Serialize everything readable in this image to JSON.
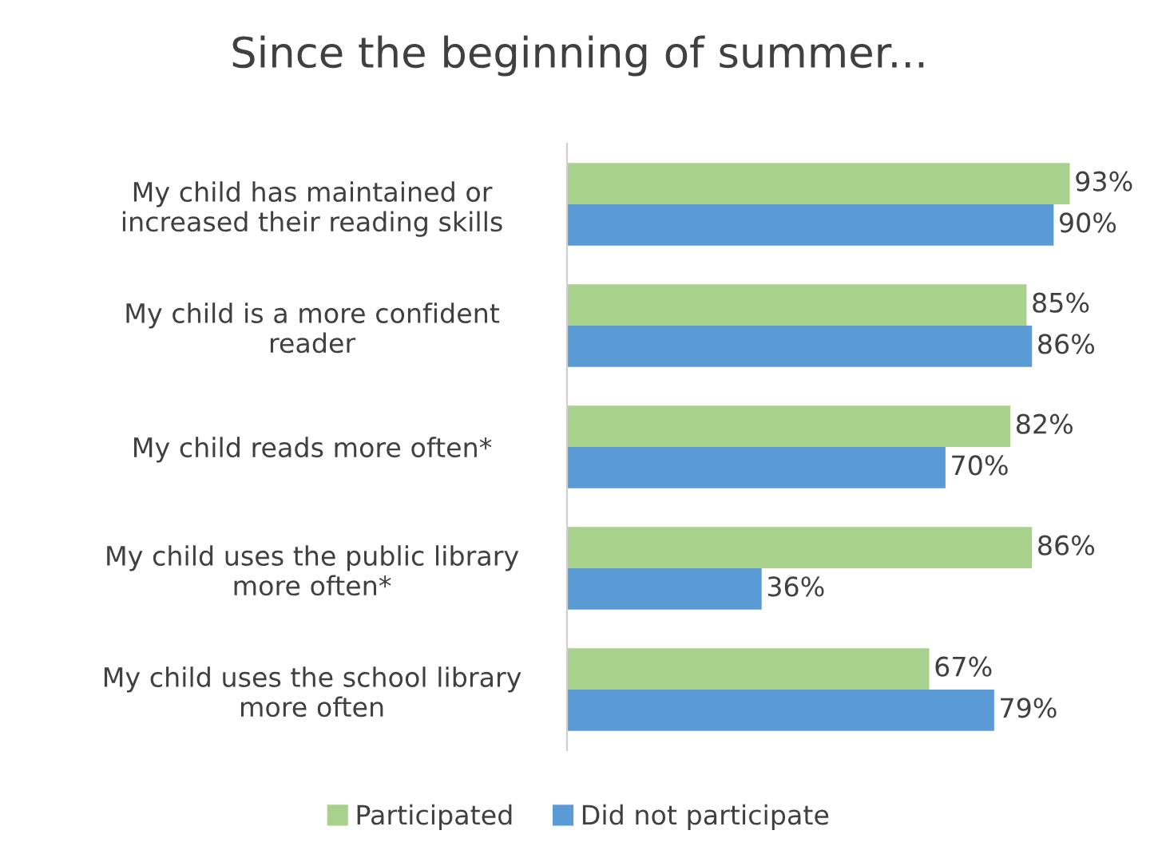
{
  "chart_data": {
    "type": "bar",
    "orientation": "horizontal",
    "title": "Since the beginning of summer...",
    "categories": [
      "My child has maintained or\nincreased their reading skills",
      "My child is a more confident\nreader",
      "My child reads more often*",
      "My child uses the public library\nmore often*",
      "My child uses the school library\nmore often"
    ],
    "series": [
      {
        "name": "Participated",
        "color": "#a9d18e",
        "values": [
          93,
          85,
          82,
          86,
          67
        ],
        "value_labels": [
          "93%",
          "85%",
          "82%",
          "86%",
          "67%"
        ]
      },
      {
        "name": "Did not participate",
        "color": "#5b9bd5",
        "values": [
          90,
          86,
          70,
          36,
          79
        ],
        "value_labels": [
          "90%",
          "86%",
          "70%",
          "36%",
          "79%"
        ]
      }
    ],
    "legend": "bottom",
    "grid": false
  }
}
